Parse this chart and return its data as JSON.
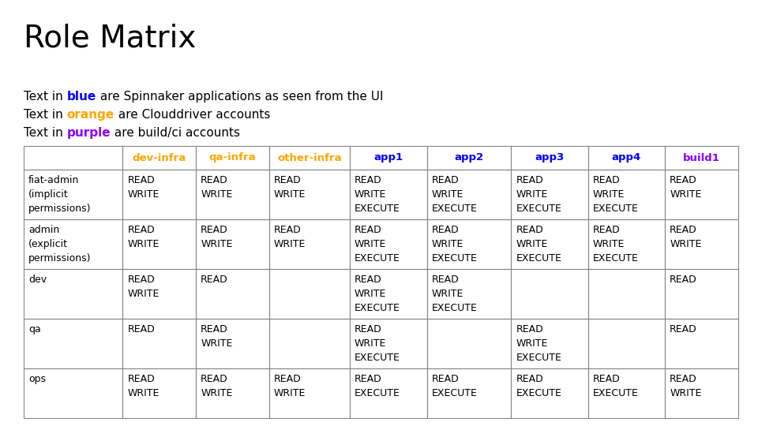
{
  "title": "Role Matrix",
  "legend_lines": [
    {
      "parts": [
        {
          "text": "Text in ",
          "color": "#000000",
          "bold": false
        },
        {
          "text": "blue",
          "color": "#0000FF",
          "bold": true
        },
        {
          "text": " are Spinnaker applications as seen from the UI",
          "color": "#000000",
          "bold": false
        }
      ]
    },
    {
      "parts": [
        {
          "text": "Text in ",
          "color": "#000000",
          "bold": false
        },
        {
          "text": "orange",
          "color": "#FFA500",
          "bold": true
        },
        {
          "text": " are Clouddriver accounts",
          "color": "#000000",
          "bold": false
        }
      ]
    },
    {
      "parts": [
        {
          "text": "Text in ",
          "color": "#000000",
          "bold": false
        },
        {
          "text": "purple",
          "color": "#8B00FF",
          "bold": true
        },
        {
          "text": " are build/ci accounts",
          "color": "#000000",
          "bold": false
        }
      ]
    }
  ],
  "col_headers": [
    "",
    "dev-infra",
    "qa-infra",
    "other-infra",
    "app1",
    "app2",
    "app3",
    "app4",
    "build1"
  ],
  "col_header_colors": [
    "#000000",
    "#FFA500",
    "#FFA500",
    "#FFA500",
    "#0000FF",
    "#0000FF",
    "#0000FF",
    "#0000FF",
    "#8B00FF"
  ],
  "rows": [
    {
      "label": "fiat-admin\n(implicit\npermissions)",
      "cells": [
        "READ\nWRITE",
        "READ\nWRITE",
        "READ\nWRITE",
        "READ\nWRITE\nEXECUTE",
        "READ\nWRITE\nEXECUTE",
        "READ\nWRITE\nEXECUTE",
        "READ\nWRITE\nEXECUTE",
        "READ\nWRITE"
      ]
    },
    {
      "label": "admin\n(explicit\npermissions)",
      "cells": [
        "READ\nWRITE",
        "READ\nWRITE",
        "READ\nWRITE",
        "READ\nWRITE\nEXECUTE",
        "READ\nWRITE\nEXECUTE",
        "READ\nWRITE\nEXECUTE",
        "READ\nWRITE\nEXECUTE",
        "READ\nWRITE"
      ]
    },
    {
      "label": "dev",
      "cells": [
        "READ\nWRITE",
        "READ",
        "",
        "READ\nWRITE\nEXECUTE",
        "READ\nWRITE\nEXECUTE",
        "",
        "",
        "READ"
      ]
    },
    {
      "label": "qa",
      "cells": [
        "READ",
        "READ\nWRITE",
        "",
        "READ\nWRITE\nEXECUTE",
        "",
        "READ\nWRITE\nEXECUTE",
        "",
        "READ"
      ]
    },
    {
      "label": "ops",
      "cells": [
        "READ\nWRITE",
        "READ\nWRITE",
        "READ\nWRITE",
        "READ\nEXECUTE",
        "READ\nEXECUTE",
        "READ\nEXECUTE",
        "READ\nEXECUTE",
        "READ\nWRITE"
      ]
    }
  ],
  "background_color": "#FFFFFF",
  "table_border_color": "#888888",
  "col_widths": [
    1.35,
    1.0,
    1.0,
    1.1,
    1.05,
    1.15,
    1.05,
    1.05,
    1.0
  ],
  "title_fontsize": 28,
  "legend_fontsize": 11,
  "cell_fontsize": 9,
  "header_fontsize": 9.5
}
